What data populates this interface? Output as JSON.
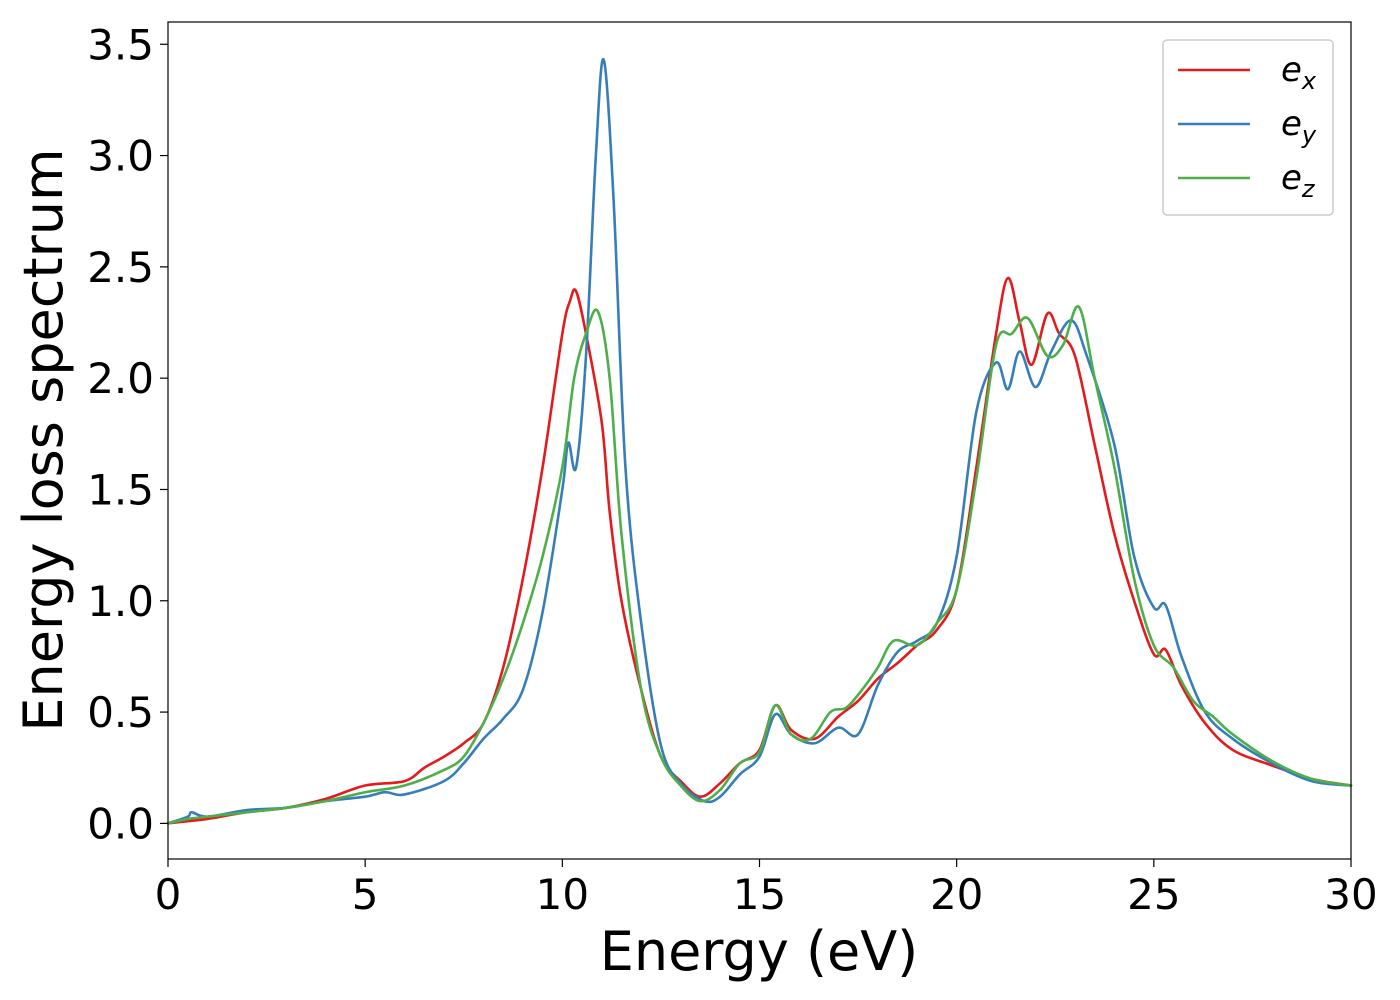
{
  "chart_data": {
    "type": "line",
    "title": "",
    "xlabel": "Energy (eV)",
    "ylabel": "Energy loss spectrum",
    "xlim": [
      0,
      30
    ],
    "ylim": [
      -0.16,
      3.6
    ],
    "xticks": [
      0,
      5,
      10,
      15,
      20,
      25,
      30
    ],
    "xtick_labels": [
      "0",
      "5",
      "10",
      "15",
      "20",
      "25",
      "30"
    ],
    "yticks": [
      0.0,
      0.5,
      1.0,
      1.5,
      2.0,
      2.5,
      3.0,
      3.5
    ],
    "ytick_labels": [
      "0.0",
      "0.5",
      "1.0",
      "1.5",
      "2.0",
      "2.5",
      "3.0",
      "3.5"
    ],
    "grid": false,
    "legend_position": "top-right",
    "series": [
      {
        "name": "e",
        "subscript": "x",
        "color": "#e41a1c",
        "points": [
          [
            0,
            0.0
          ],
          [
            0.5,
            0.01
          ],
          [
            1,
            0.02
          ],
          [
            2,
            0.05
          ],
          [
            3,
            0.07
          ],
          [
            4,
            0.11
          ],
          [
            5,
            0.17
          ],
          [
            6,
            0.19
          ],
          [
            6.5,
            0.25
          ],
          [
            7,
            0.3
          ],
          [
            7.5,
            0.36
          ],
          [
            8,
            0.45
          ],
          [
            8.5,
            0.7
          ],
          [
            9,
            1.1
          ],
          [
            9.5,
            1.6
          ],
          [
            10,
            2.2
          ],
          [
            10.2,
            2.35
          ],
          [
            10.35,
            2.39
          ],
          [
            10.6,
            2.2
          ],
          [
            11,
            1.8
          ],
          [
            11.2,
            1.4
          ],
          [
            11.5,
            1.0
          ],
          [
            12,
            0.6
          ],
          [
            12.5,
            0.3
          ],
          [
            13,
            0.19
          ],
          [
            13.5,
            0.12
          ],
          [
            14,
            0.18
          ],
          [
            14.5,
            0.27
          ],
          [
            15,
            0.33
          ],
          [
            15.4,
            0.53
          ],
          [
            15.8,
            0.42
          ],
          [
            16.4,
            0.38
          ],
          [
            17,
            0.48
          ],
          [
            17.5,
            0.55
          ],
          [
            18,
            0.65
          ],
          [
            18.5,
            0.72
          ],
          [
            19,
            0.8
          ],
          [
            19.5,
            0.87
          ],
          [
            20,
            1.05
          ],
          [
            20.5,
            1.6
          ],
          [
            21,
            2.2
          ],
          [
            21.3,
            2.45
          ],
          [
            21.6,
            2.25
          ],
          [
            21.9,
            2.06
          ],
          [
            22.3,
            2.29
          ],
          [
            22.6,
            2.2
          ],
          [
            23,
            2.1
          ],
          [
            23.5,
            1.7
          ],
          [
            24,
            1.3
          ],
          [
            24.5,
            1.0
          ],
          [
            25,
            0.76
          ],
          [
            25.3,
            0.78
          ],
          [
            25.7,
            0.62
          ],
          [
            26.3,
            0.45
          ],
          [
            27,
            0.33
          ],
          [
            28,
            0.26
          ],
          [
            29,
            0.2
          ],
          [
            30,
            0.17
          ]
        ]
      },
      {
        "name": "e",
        "subscript": "y",
        "color": "#377eb8",
        "points": [
          [
            0,
            0.0
          ],
          [
            0.5,
            0.03
          ],
          [
            0.6,
            0.05
          ],
          [
            1,
            0.03
          ],
          [
            2,
            0.06
          ],
          [
            3,
            0.07
          ],
          [
            4,
            0.1
          ],
          [
            5,
            0.12
          ],
          [
            5.5,
            0.14
          ],
          [
            6,
            0.13
          ],
          [
            7,
            0.19
          ],
          [
            7.5,
            0.27
          ],
          [
            8,
            0.38
          ],
          [
            8.5,
            0.47
          ],
          [
            9,
            0.6
          ],
          [
            9.5,
            0.95
          ],
          [
            10,
            1.5
          ],
          [
            10.15,
            1.71
          ],
          [
            10.35,
            1.6
          ],
          [
            10.6,
            2.1
          ],
          [
            10.85,
            3.0
          ],
          [
            11.05,
            3.43
          ],
          [
            11.3,
            2.8
          ],
          [
            11.6,
            1.6
          ],
          [
            12,
            0.9
          ],
          [
            12.5,
            0.35
          ],
          [
            13,
            0.18
          ],
          [
            13.6,
            0.1
          ],
          [
            14,
            0.12
          ],
          [
            14.5,
            0.22
          ],
          [
            15,
            0.3
          ],
          [
            15.4,
            0.49
          ],
          [
            15.8,
            0.4
          ],
          [
            16.4,
            0.36
          ],
          [
            17,
            0.43
          ],
          [
            17.5,
            0.4
          ],
          [
            18,
            0.62
          ],
          [
            18.5,
            0.77
          ],
          [
            19,
            0.82
          ],
          [
            19.5,
            0.9
          ],
          [
            20,
            1.2
          ],
          [
            20.5,
            1.85
          ],
          [
            21,
            2.07
          ],
          [
            21.3,
            1.95
          ],
          [
            21.6,
            2.12
          ],
          [
            22,
            1.96
          ],
          [
            22.4,
            2.12
          ],
          [
            22.9,
            2.26
          ],
          [
            23.3,
            2.1
          ],
          [
            24,
            1.7
          ],
          [
            24.5,
            1.2
          ],
          [
            25,
            0.97
          ],
          [
            25.3,
            0.98
          ],
          [
            25.7,
            0.75
          ],
          [
            26.3,
            0.5
          ],
          [
            27,
            0.38
          ],
          [
            28,
            0.27
          ],
          [
            29,
            0.19
          ],
          [
            30,
            0.17
          ]
        ]
      },
      {
        "name": "e",
        "subscript": "z",
        "color": "#4daf4a",
        "points": [
          [
            0,
            0.0
          ],
          [
            0.5,
            0.02
          ],
          [
            1,
            0.03
          ],
          [
            2,
            0.05
          ],
          [
            3,
            0.07
          ],
          [
            4,
            0.1
          ],
          [
            5,
            0.14
          ],
          [
            6,
            0.17
          ],
          [
            7,
            0.24
          ],
          [
            7.5,
            0.3
          ],
          [
            8,
            0.45
          ],
          [
            8.5,
            0.65
          ],
          [
            9,
            0.9
          ],
          [
            9.5,
            1.2
          ],
          [
            10,
            1.6
          ],
          [
            10.3,
            2.0
          ],
          [
            10.6,
            2.2
          ],
          [
            10.9,
            2.3
          ],
          [
            11.2,
            2.0
          ],
          [
            11.5,
            1.3
          ],
          [
            12,
            0.6
          ],
          [
            12.5,
            0.3
          ],
          [
            13,
            0.17
          ],
          [
            13.5,
            0.1
          ],
          [
            14,
            0.15
          ],
          [
            14.5,
            0.27
          ],
          [
            15,
            0.32
          ],
          [
            15.4,
            0.53
          ],
          [
            15.8,
            0.4
          ],
          [
            16.3,
            0.38
          ],
          [
            16.8,
            0.5
          ],
          [
            17.2,
            0.52
          ],
          [
            17.6,
            0.6
          ],
          [
            18,
            0.7
          ],
          [
            18.4,
            0.82
          ],
          [
            19,
            0.8
          ],
          [
            19.5,
            0.9
          ],
          [
            20,
            1.05
          ],
          [
            20.5,
            1.55
          ],
          [
            21,
            2.15
          ],
          [
            21.4,
            2.2
          ],
          [
            21.8,
            2.27
          ],
          [
            22.3,
            2.1
          ],
          [
            22.7,
            2.15
          ],
          [
            23.1,
            2.32
          ],
          [
            23.5,
            2.0
          ],
          [
            24,
            1.6
          ],
          [
            24.5,
            1.1
          ],
          [
            25,
            0.8
          ],
          [
            25.5,
            0.7
          ],
          [
            26,
            0.55
          ],
          [
            26.5,
            0.48
          ],
          [
            27,
            0.4
          ],
          [
            28,
            0.28
          ],
          [
            29,
            0.2
          ],
          [
            30,
            0.17
          ]
        ]
      }
    ]
  }
}
